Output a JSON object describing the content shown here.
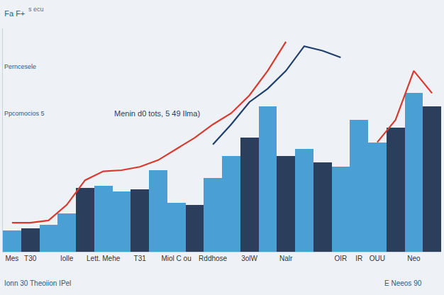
{
  "chart_data": {
    "type": "bar",
    "title": "Fa F+",
    "annotations": [
      "s ecu",
      "Perncesele",
      "Ppcomocios 5",
      "Menin d0 tots, 5 49 Ilma)",
      "Ionn 30 Theoiion IPel",
      "E Neeos 90"
    ],
    "categories": [
      "Mes",
      "T30",
      null,
      "Iolle",
      null,
      "Lett. Mehe",
      null,
      "T31",
      null,
      "Miol C ou",
      null,
      "Rddhose",
      null,
      "3olW",
      null,
      "Nalr",
      null,
      null,
      "OIR",
      "IR",
      "OUU",
      null,
      "Neo",
      null
    ],
    "series": [
      {
        "type": "bar",
        "colors": [
          "#4a9fd4",
          "#2b3f5c",
          "#4a9fd4",
          "#4a9fd4",
          "#2b3f5c",
          "#4a9fd4",
          "#4a9fd4",
          "#2b3f5c",
          "#4a9fd4",
          "#4a9fd4",
          "#2b3f5c",
          "#4a9fd4",
          "#4a9fd4",
          "#2b3f5c",
          "#4a9fd4",
          "#2b3f5c",
          "#4a9fd4",
          "#2b3f5c",
          "#4a9fd4",
          "#4a9fd4",
          "#4a9fd4",
          "#2b3f5c",
          "#4a9fd4",
          "#2b3f5c"
        ],
        "values": [
          9.5,
          10.5,
          12,
          17,
          28.5,
          29.5,
          27,
          28,
          36.5,
          22,
          21,
          33,
          43,
          51,
          65,
          43,
          46,
          40,
          38,
          59,
          49,
          55.5,
          71,
          65
        ]
      },
      {
        "type": "line",
        "color": "#d83a2e",
        "line_style": "solid",
        "values": [
          13,
          13,
          14,
          21,
          32,
          36,
          36.5,
          38,
          41,
          46,
          51,
          57,
          62,
          70,
          81,
          94,
          null,
          null,
          null,
          null,
          49,
          59,
          81,
          71
        ]
      },
      {
        "type": "line",
        "color": "#1f3f6e",
        "line_style": "solid",
        "values": [
          null,
          null,
          null,
          null,
          null,
          null,
          null,
          null,
          null,
          null,
          null,
          48,
          57,
          67,
          73,
          81,
          92,
          90,
          87,
          null,
          null,
          null,
          null,
          null
        ]
      }
    ],
    "ylim": [
      0,
      100
    ],
    "tick_labels": "x",
    "grid": false
  }
}
